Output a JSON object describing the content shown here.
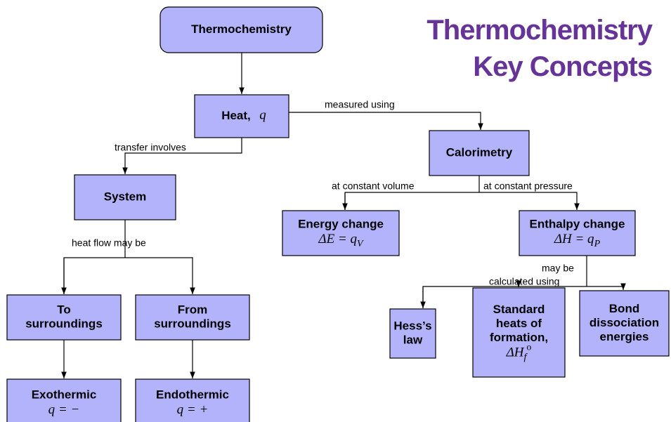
{
  "title": [
    "Thermochemistry",
    "Key Concepts"
  ],
  "nodes": [
    {
      "lines": [
        "Thermochemistry"
      ]
    },
    {
      "lines": [
        "Heat,"
      ],
      "formula": [
        {
          "text": "q"
        }
      ]
    },
    {
      "lines": [
        "Calorimetry"
      ]
    },
    {
      "lines": [
        "System"
      ]
    },
    {
      "lines": [
        "Energy change"
      ],
      "formula": [
        {
          "text": "ΔE = q"
        },
        {
          "text": "V",
          "shift": "sub"
        }
      ]
    },
    {
      "lines": [
        "Enthalpy change"
      ],
      "formula": [
        {
          "text": "ΔH = q"
        },
        {
          "text": "P",
          "shift": "sub"
        }
      ]
    },
    {
      "lines": [
        "To",
        "surroundings"
      ]
    },
    {
      "lines": [
        "From",
        "surroundings"
      ]
    },
    {
      "lines": [
        "Hess’s",
        "law"
      ]
    },
    {
      "lines": [
        "Standard",
        "heats of",
        "formation,"
      ],
      "formula": [
        {
          "text": "ΔH"
        },
        {
          "text": "f",
          "shift": "sub"
        },
        {
          "text": "o",
          "shift": "sup"
        }
      ]
    },
    {
      "lines": [
        "Bond",
        "dissociation",
        "energies"
      ]
    },
    {
      "lines": [
        "Exothermic"
      ],
      "formula": [
        {
          "text": "q = −"
        }
      ]
    },
    {
      "lines": [
        "Endothermic"
      ],
      "formula": [
        {
          "text": "q = +"
        }
      ]
    }
  ],
  "edge_labels": [
    "measured using",
    "transfer involves",
    "heat flow may be",
    "at constant volume",
    "at constant pressure",
    "may be",
    "calculated using"
  ]
}
